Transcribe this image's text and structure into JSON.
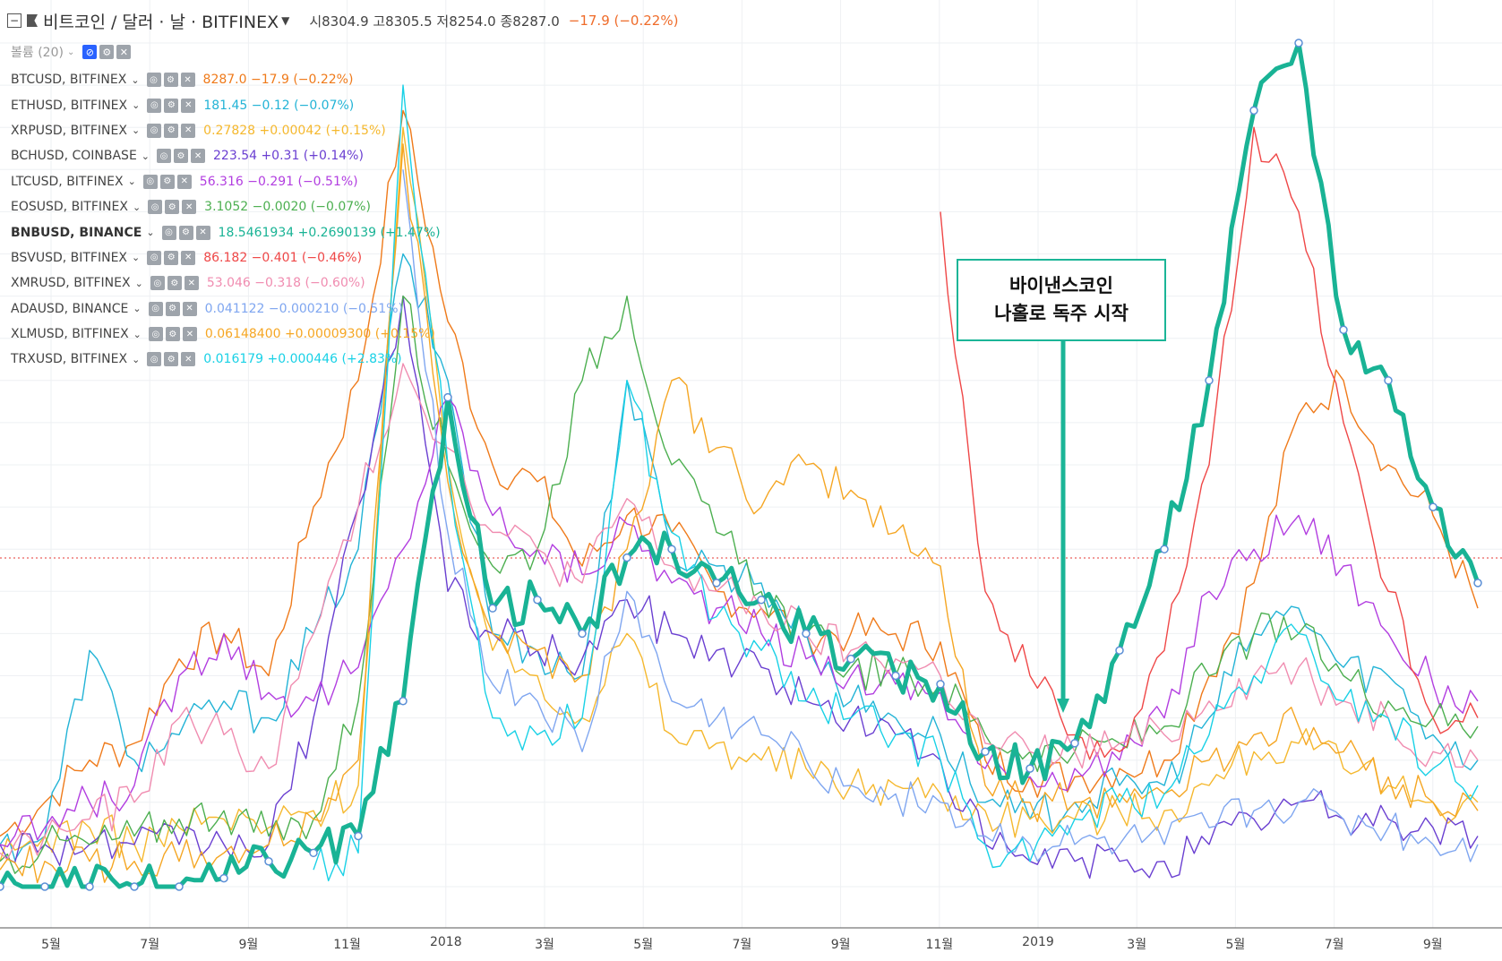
{
  "header": {
    "title": "비트코인 / 달러 · 날 · BITFINEX",
    "ohlc": "시8304.9  고8305.5  저8254.0  종8287.0",
    "change": "−17.9 (−0.22%)"
  },
  "volume": {
    "label": "볼륨 (20)"
  },
  "legend": [
    {
      "symbol": "BTCUSD, BITFINEX",
      "values": "8287.0  −17.9 (−0.22%)",
      "color": "#ef7a1a",
      "bold": false
    },
    {
      "symbol": "ETHUSD, BITFINEX",
      "values": "181.45  −0.12 (−0.07%)",
      "color": "#22b3d6",
      "bold": false
    },
    {
      "symbol": "XRPUSD, BITFINEX",
      "values": "0.27828  +0.00042 (+0.15%)",
      "color": "#f5b82e",
      "bold": false
    },
    {
      "symbol": "BCHUSD, COINBASE",
      "values": "223.54  +0.31 (+0.14%)",
      "color": "#6a3fd1",
      "bold": false
    },
    {
      "symbol": "LTCUSD, BITFINEX",
      "values": "56.316  −0.291 (−0.51%)",
      "color": "#b23ee0",
      "bold": false
    },
    {
      "symbol": "EOSUSD, BITFINEX",
      "values": "3.1052  −0.0020 (−0.07%)",
      "color": "#4caf50",
      "bold": false
    },
    {
      "symbol": "BNBUSD, BINANCE",
      "values": "18.5461934  +0.2690139 (+1.47%)",
      "color": "#19b395",
      "bold": true
    },
    {
      "symbol": "BSVUSD, BITFINEX",
      "values": "86.182  −0.401 (−0.46%)",
      "color": "#ef4747",
      "bold": false
    },
    {
      "symbol": "XMRUSD, BITFINEX",
      "values": "53.046  −0.318 (−0.60%)",
      "color": "#f08cb0",
      "bold": false
    },
    {
      "symbol": "ADAUSD, BINANCE",
      "values": "0.041122  −0.000210 (−0.51%)",
      "color": "#7fa6f0",
      "bold": false
    },
    {
      "symbol": "XLMUSD, BITFINEX",
      "values": "0.06148400  +0.00009300 (+0.15%)",
      "color": "#f5a623",
      "bold": false
    },
    {
      "symbol": "TRXUSD, BITFINEX",
      "values": "0.016179  +0.000446 (+2.83%)",
      "color": "#19d1e6",
      "bold": false
    }
  ],
  "annotation": {
    "line1": "바이낸스코인",
    "line2": "나홀로 독주 시작"
  },
  "chart_data": {
    "type": "line",
    "x_ticks": [
      "5월",
      "7월",
      "9월",
      "11월",
      "2018",
      "3월",
      "5월",
      "7월",
      "9월",
      "11월",
      "2019",
      "3월",
      "5월",
      "7월",
      "9월"
    ],
    "x": [
      0,
      1,
      2,
      3,
      4,
      5,
      6,
      7,
      8,
      9,
      10,
      11,
      12,
      13,
      14,
      15,
      16,
      17,
      18,
      19,
      20,
      21,
      22,
      23,
      24,
      25,
      26,
      27,
      28,
      29,
      30,
      31,
      32,
      33
    ],
    "series": [
      {
        "name": "BTCUSD, BITFINEX",
        "color": "#ef7a1a",
        "values": [
          6,
          10,
          15,
          17,
          27,
          30,
          25,
          45,
          60,
          92,
          67,
          50,
          48,
          38,
          44,
          42,
          35,
          33,
          30,
          30,
          30,
          29,
          15,
          13,
          13,
          14,
          15,
          25,
          36,
          56,
          60,
          50,
          44,
          33
        ]
      },
      {
        "name": "ETHUSD, BITFINEX",
        "color": "#22b3d6",
        "values": [
          5,
          6,
          28,
          15,
          18,
          22,
          20,
          30,
          40,
          75,
          60,
          30,
          28,
          25,
          60,
          40,
          38,
          36,
          30,
          22,
          20,
          18,
          10,
          8,
          10,
          12,
          12,
          20,
          30,
          33,
          26,
          25,
          18,
          15
        ]
      },
      {
        "name": "XRPUSD, BITFINEX",
        "color": "#f5b82e",
        "values": [
          3,
          6,
          7,
          5,
          7,
          8,
          7,
          9,
          12,
          90,
          50,
          28,
          25,
          20,
          30,
          18,
          17,
          15,
          14,
          12,
          12,
          11,
          9,
          8,
          8,
          9,
          9,
          12,
          16,
          17,
          14,
          12,
          10,
          10
        ]
      },
      {
        "name": "BCHUSD, COINBASE",
        "color": "#6a3fd1",
        "values": [
          5,
          5,
          5,
          5,
          5,
          5,
          5,
          20,
          45,
          70,
          35,
          30,
          28,
          27,
          34,
          30,
          28,
          26,
          22,
          20,
          18,
          15,
          5,
          3,
          3,
          3,
          3,
          5,
          8,
          10,
          8,
          8,
          7,
          6
        ]
      },
      {
        "name": "LTCUSD, BITFINEX",
        "color": "#b23ee0",
        "values": [
          5,
          7,
          10,
          12,
          25,
          30,
          23,
          22,
          26,
          40,
          58,
          44,
          40,
          37,
          43,
          36,
          33,
          30,
          27,
          25,
          24,
          23,
          14,
          13,
          14,
          15,
          20,
          35,
          40,
          44,
          38,
          30,
          24,
          22
        ]
      },
      {
        "name": "EOSUSD, BITFINEX",
        "color": "#4caf50",
        "values": [
          3,
          5,
          5,
          6,
          8,
          9,
          6,
          8,
          22,
          70,
          50,
          38,
          40,
          60,
          70,
          50,
          42,
          35,
          30,
          26,
          25,
          24,
          18,
          16,
          16,
          17,
          19,
          25,
          30,
          30,
          25,
          22,
          20,
          19
        ]
      },
      {
        "name": "BNBUSD, BINANCE",
        "color": "#19b395",
        "values": [
          0,
          0,
          0,
          0,
          0,
          1,
          3,
          4,
          6,
          22,
          58,
          33,
          34,
          30,
          39,
          40,
          36,
          34,
          30,
          27,
          25,
          24,
          16,
          14,
          17,
          28,
          40,
          60,
          92,
          100,
          66,
          60,
          45,
          36
        ]
      },
      {
        "name": "BSVUSD, BITFINEX",
        "color": "#ef4747",
        "values": [
          null,
          null,
          null,
          null,
          null,
          null,
          null,
          null,
          null,
          null,
          null,
          null,
          null,
          null,
          null,
          null,
          null,
          null,
          null,
          null,
          null,
          80,
          35,
          25,
          18,
          16,
          28,
          50,
          90,
          80,
          55,
          35,
          20,
          20
        ]
      },
      {
        "name": "XMRUSD, BITFINEX",
        "color": "#f08cb0",
        "values": [
          4,
          6,
          8,
          10,
          20,
          18,
          14,
          30,
          45,
          62,
          52,
          42,
          40,
          36,
          46,
          38,
          35,
          33,
          30,
          28,
          27,
          25,
          17,
          16,
          16,
          17,
          18,
          22,
          25,
          26,
          22,
          20,
          16,
          15
        ]
      },
      {
        "name": "ADAUSD, BINANCE",
        "color": "#7fa6f0",
        "values": [
          null,
          null,
          null,
          null,
          null,
          null,
          null,
          null,
          null,
          85,
          42,
          24,
          22,
          16,
          35,
          22,
          20,
          18,
          15,
          12,
          11,
          10,
          6,
          5,
          5,
          5,
          5,
          7,
          9,
          10,
          8,
          7,
          5,
          5
        ]
      },
      {
        "name": "XLMUSD, BITFINEX",
        "color": "#f5a623",
        "values": [
          2,
          3,
          3,
          3,
          3,
          4,
          5,
          8,
          15,
          88,
          48,
          30,
          28,
          25,
          40,
          60,
          52,
          45,
          50,
          47,
          42,
          38,
          12,
          10,
          10,
          11,
          11,
          15,
          18,
          19,
          16,
          13,
          10,
          9
        ]
      },
      {
        "name": "TRXUSD, BITFINEX",
        "color": "#19d1e6",
        "values": [
          null,
          null,
          null,
          null,
          null,
          null,
          null,
          2,
          4,
          95,
          50,
          20,
          18,
          20,
          60,
          42,
          32,
          28,
          22,
          20,
          18,
          15,
          5,
          3,
          8,
          10,
          11,
          18,
          25,
          30,
          22,
          20,
          14,
          12
        ]
      }
    ]
  }
}
